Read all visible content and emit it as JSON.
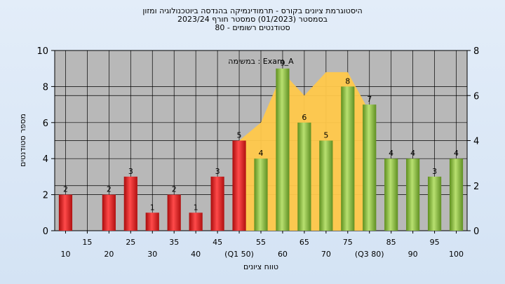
{
  "titles": {
    "line1": "היסטוגרמת ציונים בקורס - תרמודינמיקה בהנדסה ביוטכנולוגיה ומזון",
    "line2": "בסמסטר  (01/2023)  סמסטר חורף 2023/24",
    "line3": "סטודנטים רשומים - 80"
  },
  "chart_data": {
    "type": "bar",
    "title": "היסטוגרמת ציונים בקורס - תרמודינמיקה בהנדסה ביוטכנולוגיה ומזון",
    "xlabel": "טווח ציונים",
    "ylabel": "מספר סטודנטים",
    "annotation": "במשימה : Exam_A",
    "ylim": [
      0,
      10
    ],
    "y_ticks": [
      0,
      2,
      4,
      6,
      8,
      10
    ],
    "y2lim": [
      0,
      8
    ],
    "y2_ticks": [
      0,
      2,
      4,
      6,
      8
    ],
    "grid": true,
    "categories": [
      "10",
      "15",
      "20",
      "25",
      "30",
      "35",
      "40",
      "45",
      "50",
      "55",
      "60",
      "65",
      "70",
      "75",
      "80",
      "85",
      "90",
      "95",
      "100"
    ],
    "x_tick_labels_row1": [
      "",
      "15",
      "",
      "25",
      "",
      "35",
      "",
      "45",
      "",
      "55",
      "",
      "65",
      "",
      "75",
      "",
      "85",
      "",
      "95",
      ""
    ],
    "x_tick_labels_row2": [
      "10",
      "",
      "20",
      "",
      "30",
      "",
      "40",
      "",
      "(Q1 50)",
      "",
      "60",
      "",
      "70",
      "",
      "(Q3 80)",
      "",
      "90",
      "",
      "100"
    ],
    "values": [
      2,
      0,
      2,
      3,
      1,
      2,
      1,
      3,
      5,
      4,
      9,
      6,
      5,
      8,
      7,
      4,
      4,
      3,
      4
    ],
    "pass_threshold": 55,
    "quartile_area": {
      "x": [
        50,
        55,
        60,
        65,
        70,
        75,
        80
      ],
      "values": [
        5,
        6,
        8.8,
        7.5,
        8.8,
        8.8,
        6.6
      ]
    },
    "colors": {
      "fail": "#e82020",
      "pass": "#8cc63f",
      "quartile_area": "#ffc84a",
      "plot_bg": "#b8b8b8",
      "page_bg": "#d8e6f5"
    }
  }
}
